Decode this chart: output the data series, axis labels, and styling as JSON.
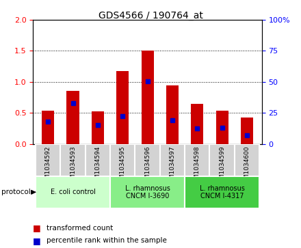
{
  "title": "GDS4566 / 190764_at",
  "samples": [
    "GSM1034592",
    "GSM1034593",
    "GSM1034594",
    "GSM1034595",
    "GSM1034596",
    "GSM1034597",
    "GSM1034598",
    "GSM1034599",
    "GSM1034600"
  ],
  "transformed_count": [
    0.54,
    0.85,
    0.52,
    1.17,
    1.51,
    0.94,
    0.65,
    0.53,
    0.42
  ],
  "percentile_rank": [
    0.36,
    0.66,
    0.3,
    0.45,
    1.01,
    0.38,
    0.245,
    0.26,
    0.14
  ],
  "ylim_left": [
    0,
    2
  ],
  "ylim_right": [
    0,
    100
  ],
  "yticks_left": [
    0,
    0.5,
    1.0,
    1.5,
    2.0
  ],
  "yticks_right": [
    0,
    25,
    50,
    75,
    100
  ],
  "bar_color": "#cc0000",
  "dot_color": "#0000cc",
  "grid_color": "#000000",
  "bg_color": "#ffffff",
  "sample_box_color": "#d3d3d3",
  "proto_colors": [
    "#ccffcc",
    "#88ee88",
    "#44cc44"
  ],
  "proto_labels": [
    "E. coli control",
    "L. rhamnosus\nCNCM I-3690",
    "L. rhamnosus\nCNCM I-4317"
  ],
  "proto_ranges": [
    [
      0,
      3
    ],
    [
      3,
      6
    ],
    [
      6,
      9
    ]
  ],
  "legend_labels": [
    "transformed count",
    "percentile rank within the sample"
  ],
  "legend_colors": [
    "#cc0000",
    "#0000cc"
  ],
  "bar_width": 0.5
}
